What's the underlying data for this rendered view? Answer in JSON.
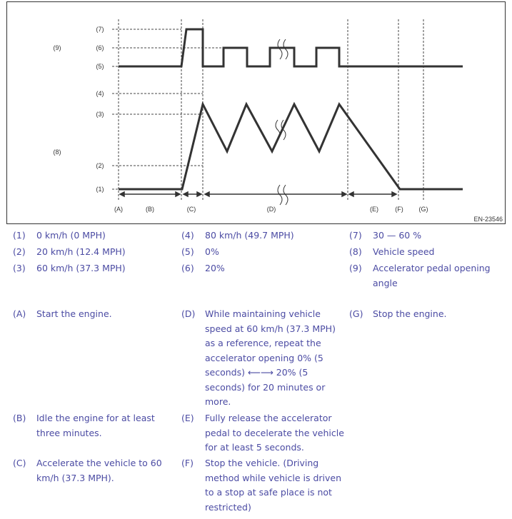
{
  "diagram": {
    "y_labels": [
      "(7)",
      "(6)",
      "(5)",
      "(4)",
      "(3)",
      "(2)",
      "(1)"
    ],
    "group_labels": {
      "accelerator": "(9)",
      "speed": "(8)"
    },
    "phase_labels": [
      "(A)",
      "(B)",
      "(C)",
      "(D)",
      "(E)",
      "(F)",
      "(G)"
    ],
    "figure_id": "EN-23546",
    "line_color": "#333333",
    "break_mark": "wavy-break-icon"
  },
  "legend": [
    {
      "num": "(1)",
      "text": "0 km/h (0 MPH)"
    },
    {
      "num": "(2)",
      "text": "20 km/h (12.4 MPH)"
    },
    {
      "num": "(3)",
      "text": "60 km/h (37.3 MPH)"
    },
    {
      "num": "(4)",
      "text": "80 km/h (49.7 MPH)"
    },
    {
      "num": "(5)",
      "text": "0%"
    },
    {
      "num": "(6)",
      "text": "20%"
    },
    {
      "num": "(7)",
      "text": "30 — 60 %"
    },
    {
      "num": "(8)",
      "text": "Vehicle speed"
    },
    {
      "num": "(9)",
      "text": "Accelerator pedal opening angle"
    }
  ],
  "steps": [
    {
      "num": "(A)",
      "text": "Start the engine."
    },
    {
      "num": "(B)",
      "text": "Idle the engine for at least three minutes."
    },
    {
      "num": "(C)",
      "text": "Accelerate the vehicle to 60 km/h (37.3 MPH)."
    },
    {
      "num": "(D)",
      "text": "While maintaining vehicle speed at 60 km/h (37.3 MPH) as a reference, repeat the accelerator opening 0% (5 seconds) ⟵⟶ 20% (5 seconds) for 20 minutes or more."
    },
    {
      "num": "(E)",
      "text": "Fully release the accelerator pedal to decelerate the vehicle for at least 5 seconds."
    },
    {
      "num": "(F)",
      "text": "Stop the vehicle. (Driving method while vehicle is driven to a stop at safe place is not restricted)"
    },
    {
      "num": "(G)",
      "text": "Stop the engine."
    }
  ],
  "text_color": "#4b4ba3"
}
